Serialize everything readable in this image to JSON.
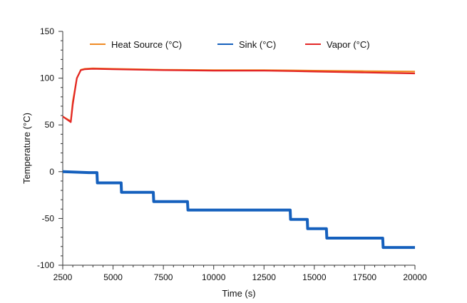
{
  "chart_data": {
    "type": "line",
    "title": "",
    "xlabel": "Time (s)",
    "ylabel": "Temperature (°C)",
    "xlim": [
      2500,
      20000
    ],
    "ylim": [
      -100,
      150
    ],
    "x_ticks": [
      2500,
      5000,
      7500,
      10000,
      12500,
      15000,
      17500,
      20000
    ],
    "x_tick_labels": [
      "2500",
      "5000",
      "7500",
      "10000",
      "12500",
      "15000",
      "17500",
      "20000"
    ],
    "y_ticks": [
      -100,
      -50,
      0,
      50,
      100,
      150
    ],
    "y_tick_labels": [
      "-100",
      "-50",
      "0",
      "50",
      "100",
      "150"
    ],
    "grid": false,
    "legend_position": "top",
    "series": [
      {
        "name": "Heat Source (°C)",
        "color": "#F08A24",
        "x": [
          2500,
          2900,
          3000,
          3200,
          3400,
          3600,
          4000,
          5000,
          7500,
          10000,
          12500,
          14000,
          15000,
          17500,
          20000
        ],
        "y": [
          59,
          54,
          75,
          100,
          109,
          110,
          110.5,
          110,
          109,
          108.5,
          108.5,
          108.3,
          108,
          107.5,
          107
        ]
      },
      {
        "name": "Sink (°C)",
        "color": "#1560BD",
        "x": [
          2500,
          3800,
          4200,
          4220,
          5400,
          5420,
          7000,
          7020,
          8700,
          8720,
          13800,
          13820,
          14650,
          14670,
          15600,
          15620,
          18400,
          18420,
          20000
        ],
        "y": [
          0,
          -1,
          -1,
          -12,
          -12,
          -22,
          -22,
          -32,
          -32,
          -41,
          -41,
          -51,
          -51,
          -61,
          -61,
          -71,
          -71,
          -81,
          -81
        ]
      },
      {
        "name": "Vapor (°C)",
        "color": "#E32626",
        "x": [
          2500,
          2900,
          3000,
          3200,
          3400,
          3600,
          4000,
          5000,
          7500,
          10000,
          12500,
          14000,
          15000,
          17500,
          20000
        ],
        "y": [
          59,
          53,
          72,
          100,
          108.5,
          109.5,
          110,
          109.5,
          108.5,
          108,
          108,
          107.5,
          107,
          106,
          105
        ]
      }
    ]
  }
}
